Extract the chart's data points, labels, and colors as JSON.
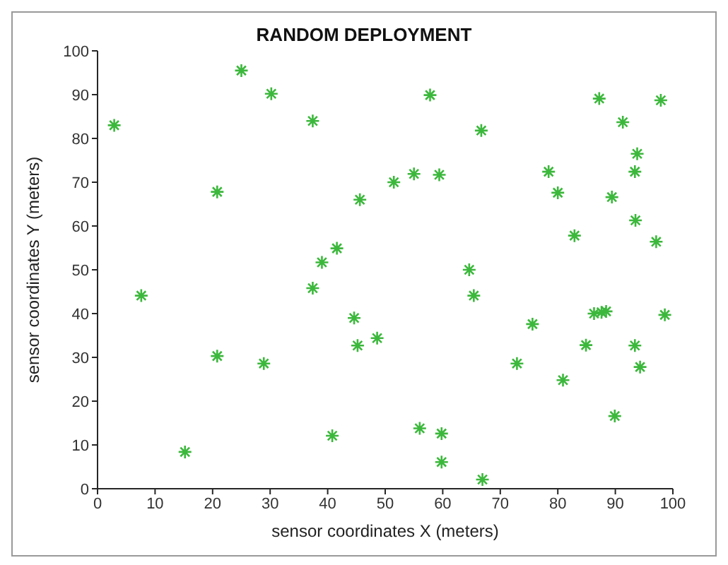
{
  "chart_data": {
    "type": "scatter",
    "title": "RANDOM DEPLOYMENT",
    "xlabel": "sensor coordinates X (meters)",
    "ylabel": "sensor coordinates Y (meters)",
    "xlim": [
      0,
      100
    ],
    "ylim": [
      0,
      100
    ],
    "xticks": [
      0,
      10,
      20,
      30,
      40,
      50,
      60,
      70,
      80,
      90,
      100
    ],
    "yticks": [
      0,
      10,
      20,
      30,
      40,
      50,
      60,
      70,
      80,
      90,
      100
    ],
    "grid": false,
    "legend": false,
    "marker": "cross",
    "series": [
      {
        "color": "#3cb83c",
        "x": [
          2.9,
          25.0,
          30.2,
          37.4,
          20.8,
          45.6,
          51.5,
          41.6,
          39.0,
          57.8,
          66.7,
          87.2,
          97.9,
          91.3,
          93.8,
          93.4,
          78.4,
          80.0,
          89.4,
          93.5,
          97.1,
          82.9,
          55.0,
          59.4,
          64.6,
          7.6,
          15.2,
          20.8,
          28.9,
          37.4,
          44.6,
          45.2,
          48.6,
          40.8,
          65.4,
          75.6,
          72.9,
          80.9,
          84.9,
          86.3,
          87.6,
          88.4,
          98.6,
          93.4,
          94.3,
          89.9,
          56.0,
          59.8,
          59.8,
          66.9
        ],
        "values": [
          83.0,
          95.5,
          90.2,
          84.0,
          67.8,
          66.0,
          70.0,
          54.9,
          51.7,
          89.9,
          81.8,
          89.1,
          88.7,
          83.7,
          76.5,
          72.4,
          72.4,
          67.6,
          66.6,
          61.3,
          56.4,
          57.8,
          71.9,
          71.7,
          50.0,
          44.1,
          8.4,
          30.3,
          28.6,
          45.8,
          39.0,
          32.7,
          34.4,
          12.1,
          44.1,
          37.6,
          28.6,
          24.8,
          32.8,
          40.0,
          40.3,
          40.5,
          39.7,
          32.7,
          27.8,
          16.6,
          13.8,
          12.6,
          6.1,
          2.1
        ]
      }
    ]
  }
}
